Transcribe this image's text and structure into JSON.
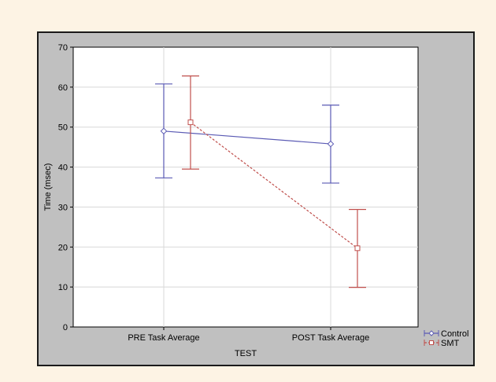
{
  "chart_data": {
    "type": "line",
    "xlabel": "TEST",
    "ylabel": "Time (msec)",
    "categories": [
      "PRE Task Average",
      "POST Task Average"
    ],
    "ylim": [
      0,
      70
    ],
    "yticks": [
      0,
      10,
      20,
      30,
      40,
      50,
      60,
      70
    ],
    "grid": true,
    "legend_position": "bottom-right",
    "series": [
      {
        "name": "Control",
        "color": "#5a5ab4",
        "marker": "diamond",
        "line_style": "solid",
        "values": [
          49,
          45.8
        ],
        "upper": [
          60.8,
          55.5
        ],
        "lower": [
          37.3,
          36
        ]
      },
      {
        "name": "SMT",
        "color": "#c0504d",
        "marker": "square",
        "line_style": "dashed",
        "values": [
          51.2,
          19.7
        ],
        "upper": [
          62.8,
          29.4
        ],
        "lower": [
          39.5,
          9.9
        ]
      }
    ]
  }
}
